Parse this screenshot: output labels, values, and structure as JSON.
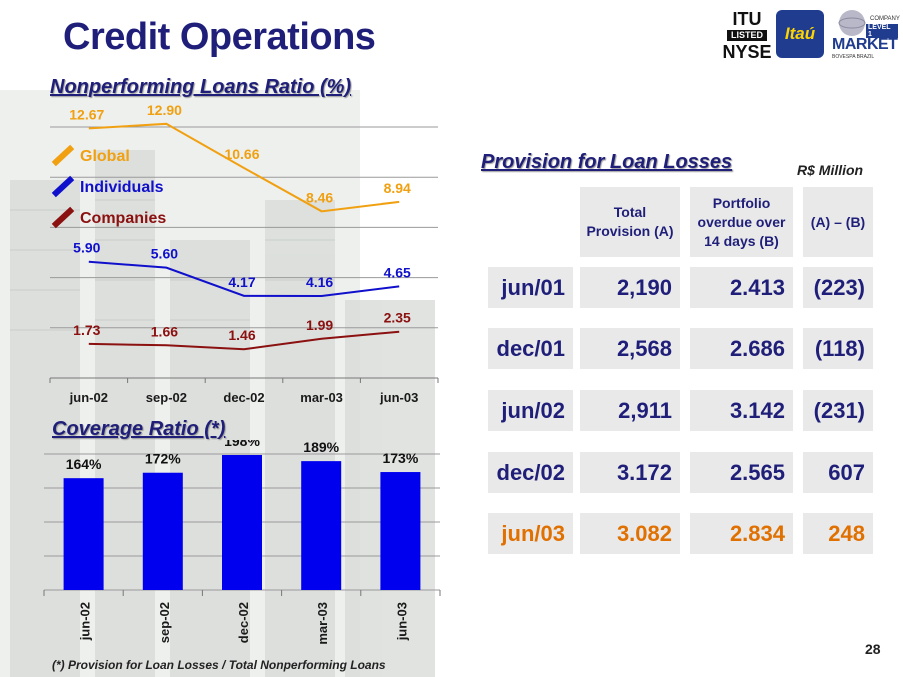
{
  "page": {
    "title": "Credit Operations",
    "page_number": "28",
    "footnote": "(*) Provision for Loan Losses   / Total Nonperforming Loans"
  },
  "logos": {
    "nyse": {
      "line1": "ITU",
      "line2": "LISTED",
      "line3": "NYSE"
    },
    "itau": "Itaú",
    "market": {
      "line1": "COMPANY",
      "line2": "LEVEL 1",
      "line3": "MARKET",
      "line4": "BOVESPA BRAZIL"
    }
  },
  "colors": {
    "global": "#f0a010",
    "individuals": "#1010cc",
    "companies": "#8b1010",
    "bar": "#0000ee",
    "navy": "#1f1f7a",
    "highlight": "#e07000"
  },
  "chart_data": [
    {
      "type": "line",
      "title": "Nonperforming Loans Ratio (%)",
      "categories": [
        "jun-02",
        "sep-02",
        "dec-02",
        "mar-03",
        "jun-03"
      ],
      "legend": [
        "Global",
        "Individuals",
        "Companies"
      ],
      "series": [
        {
          "values": [
            12.67,
            12.9,
            10.66,
            8.46,
            8.94
          ],
          "labels": [
            "12.67",
            "12.90",
            "10.66",
            "8.46",
            "8.94"
          ],
          "color": "#f0a010"
        },
        {
          "values": [
            5.9,
            5.6,
            4.17,
            4.16,
            4.65
          ],
          "labels": [
            "5.90",
            "5.60",
            "4.17",
            "4.16",
            "4.65"
          ],
          "color": "#1010cc"
        },
        {
          "values": [
            1.73,
            1.66,
            1.46,
            1.99,
            2.35
          ],
          "labels": [
            "1.73",
            "1.66",
            "1.46",
            "1.99",
            "2.35"
          ],
          "color": "#8b1010"
        }
      ],
      "grid": true
    },
    {
      "type": "bar",
      "title": "Coverage Ratio (*)",
      "categories": [
        "jun-02",
        "sep-02",
        "dec-02",
        "mar-03",
        "jun-03"
      ],
      "values": [
        164,
        172,
        198,
        189,
        173
      ],
      "labels": [
        "164%",
        "172%",
        "198%",
        "189%",
        "173%"
      ],
      "grid": true
    },
    {
      "type": "table",
      "title": "Provision for Loan Losses",
      "units": "R$ Million",
      "columns": [
        "Total Provision (A)",
        "Portfolio overdue over 14 days (B)",
        "(A) – (B)"
      ],
      "rows": [
        {
          "period": "jun/01",
          "total": "2,190",
          "overdue": "2.413",
          "diff": "(223)"
        },
        {
          "period": "dec/01",
          "total": "2,568",
          "overdue": "2.686",
          "diff": "(118)"
        },
        {
          "period": "jun/02",
          "total": "2,911",
          "overdue": "3.142",
          "diff": "(231)"
        },
        {
          "period": "dec/02",
          "total": "3.172",
          "overdue": "2.565",
          "diff": "607"
        },
        {
          "period": "jun/03",
          "total": "3.082",
          "overdue": "2.834",
          "diff": "248"
        }
      ],
      "highlight_row": 4
    }
  ]
}
